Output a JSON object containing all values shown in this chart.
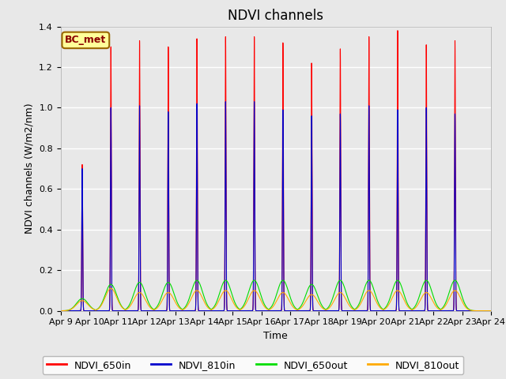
{
  "title": "NDVI channels",
  "ylabel": "NDVI channels (W/m2/nm)",
  "xlabel": "Time",
  "ylim": [
    0,
    1.4
  ],
  "total_days": 15,
  "xtick_labels": [
    "Apr 9",
    "Apr 10",
    "Apr 11",
    "Apr 12",
    "Apr 13",
    "Apr 14",
    "Apr 15",
    "Apr 16",
    "Apr 17",
    "Apr 18",
    "Apr 19",
    "Apr 20",
    "Apr 21",
    "Apr 22",
    "Apr 23",
    "Apr 24"
  ],
  "colors": {
    "NDVI_650in": "#ff0000",
    "NDVI_810in": "#0000cc",
    "NDVI_650out": "#00dd00",
    "NDVI_810out": "#ffaa00"
  },
  "legend_label": "BC_met",
  "legend_box_color": "#ffff99",
  "legend_box_edge": "#996600",
  "background_color": "#e8e8e8",
  "grid_color": "#ffffff",
  "spike_day_offsets": [
    0.75,
    1.75,
    2.75,
    3.75,
    4.75,
    5.75,
    6.75,
    7.75,
    8.75,
    9.75,
    10.75,
    11.75,
    12.75,
    13.75
  ],
  "spike_650in": [
    0.72,
    1.3,
    1.33,
    1.3,
    1.34,
    1.35,
    1.35,
    1.32,
    1.22,
    1.29,
    1.35,
    1.38,
    1.31,
    1.33
  ],
  "spike_810in": [
    0.7,
    1.0,
    1.01,
    0.98,
    1.02,
    1.03,
    1.03,
    0.99,
    0.96,
    0.97,
    1.01,
    0.99,
    1.0,
    0.97
  ],
  "spike_650out": [
    0.06,
    0.13,
    0.14,
    0.14,
    0.15,
    0.15,
    0.15,
    0.15,
    0.13,
    0.15,
    0.15,
    0.15,
    0.15,
    0.15
  ],
  "spike_810out": [
    0.05,
    0.11,
    0.09,
    0.09,
    0.1,
    0.1,
    0.1,
    0.09,
    0.08,
    0.09,
    0.1,
    0.1,
    0.09,
    0.1
  ],
  "title_fontsize": 12,
  "label_fontsize": 9,
  "tick_fontsize": 8,
  "legend_fontsize": 9,
  "figure_facecolor": "#e8e8e8"
}
